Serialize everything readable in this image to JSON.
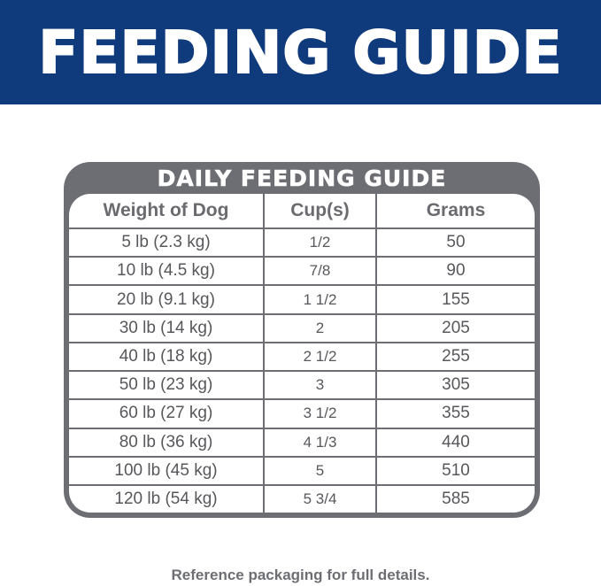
{
  "banner": {
    "title": "FEEDING GUIDE",
    "color": "#0f3a7c"
  },
  "table": {
    "title": "DAILY FEEDING GUIDE",
    "border_color": "#6d6e73",
    "headers": [
      "Weight of Dog",
      "Cup(s)",
      "Grams"
    ],
    "rows": [
      {
        "weight": "5 lb (2.3 kg)",
        "cups": "1/2",
        "grams": "50"
      },
      {
        "weight": "10 lb (4.5 kg)",
        "cups": "7/8",
        "grams": "90"
      },
      {
        "weight": "20 lb (9.1 kg)",
        "cups": "1 1/2",
        "grams": "155"
      },
      {
        "weight": "30 lb (14 kg)",
        "cups": "2",
        "grams": "205"
      },
      {
        "weight": "40 lb (18 kg)",
        "cups": "2 1/2",
        "grams": "255"
      },
      {
        "weight": "50 lb (23 kg)",
        "cups": "3",
        "grams": "305"
      },
      {
        "weight": "60 lb (27 kg)",
        "cups": "3 1/2",
        "grams": "355"
      },
      {
        "weight": "80 lb (36 kg)",
        "cups": "4 1/3",
        "grams": "440"
      },
      {
        "weight": "100 lb (45 kg)",
        "cups": "5",
        "grams": "510"
      },
      {
        "weight": "120 lb (54 kg)",
        "cups": "5 3/4",
        "grams": "585"
      }
    ]
  },
  "footer": {
    "note": "Reference packaging for full details."
  }
}
